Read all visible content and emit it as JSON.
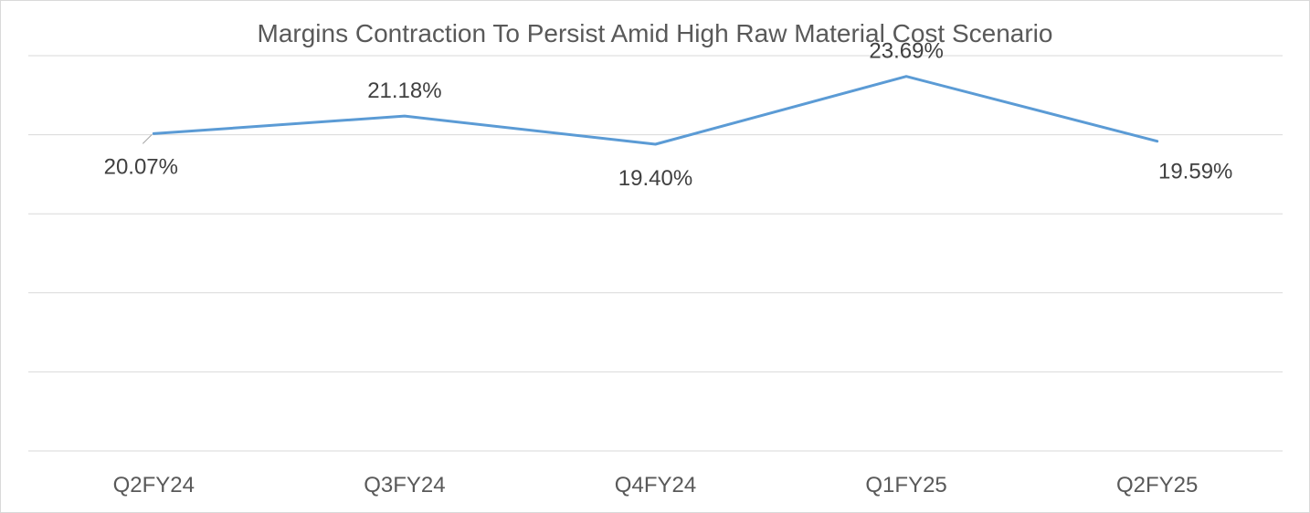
{
  "chart_data": {
    "type": "line",
    "title": "Margins Contraction To Persist Amid High Raw Material Cost Scenario",
    "categories": [
      "Q2FY24",
      "Q3FY24",
      "Q4FY24",
      "Q1FY25",
      "Q2FY25"
    ],
    "series": [
      {
        "values": [
          20.07,
          21.18,
          19.4,
          23.69,
          19.59
        ],
        "labels": [
          "20.07%",
          "21.18%",
          "19.40%",
          "23.69%",
          "19.59%"
        ],
        "color": "#5b9bd5"
      }
    ],
    "ylim": [
      0,
      25
    ],
    "grid": true,
    "legend": "none",
    "y_tick_labels_shown": false
  }
}
